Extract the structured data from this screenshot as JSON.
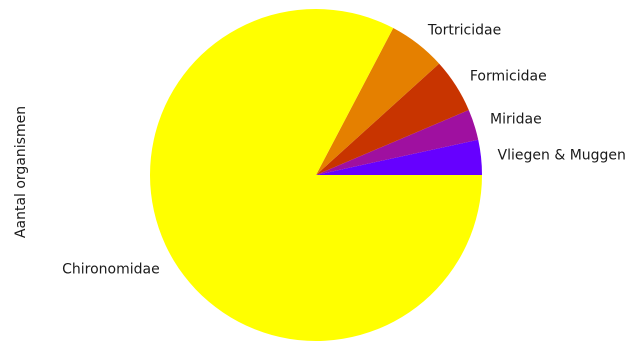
{
  "chart_data": {
    "type": "pie",
    "title": "",
    "ylabel": "Aantal organismen",
    "slices": [
      {
        "label": "Vliegen & Muggen",
        "value": 3.4,
        "color": "#6600ff"
      },
      {
        "label": "Miridae",
        "value": 3.0,
        "color": "#9f10a0"
      },
      {
        "label": "Formicidae",
        "value": 5.3,
        "color": "#c83400"
      },
      {
        "label": "Tortricidae",
        "value": 5.6,
        "color": "#e58000"
      },
      {
        "label": "Chironomidae",
        "value": 82.7,
        "color": "#ffff00"
      }
    ]
  }
}
